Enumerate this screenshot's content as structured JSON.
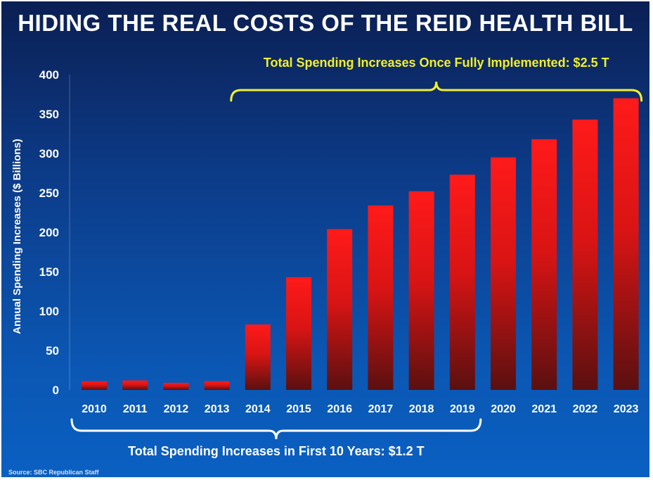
{
  "title": "HIDING THE REAL COSTS OF THE REID HEALTH BILL",
  "source": "Source: SBC Republican Staff",
  "colors": {
    "bar_top": "#ff1a1a",
    "bar_bottom": "#5a1010",
    "top_brace": "#f3ef2a",
    "bottom_brace": "#ffffff"
  },
  "chart_data": {
    "type": "bar",
    "title": "HIDING THE REAL COSTS OF THE REID HEALTH BILL",
    "xlabel": "",
    "ylabel": "Annual Spending Increases ($ Billions)",
    "ylim": [
      0,
      400
    ],
    "yticks": [
      0,
      50,
      100,
      150,
      200,
      250,
      300,
      350,
      400
    ],
    "categories": [
      "2010",
      "2011",
      "2012",
      "2013",
      "2014",
      "2015",
      "2016",
      "2017",
      "2018",
      "2019",
      "2020",
      "2021",
      "2022",
      "2023"
    ],
    "values": [
      11,
      12,
      9,
      11,
      83,
      143,
      204,
      234,
      252,
      273,
      295,
      318,
      343,
      370
    ],
    "grid": false,
    "legend": "none",
    "annotations": [
      {
        "text": "Total Spending Increases Once Fully Implemented: $2.5 T",
        "from": "2014",
        "to": "2023",
        "position": "above"
      },
      {
        "text": "Total Spending Increases in First 10 Years: $1.2 T",
        "from": "2010",
        "to": "2019",
        "position": "below"
      }
    ]
  }
}
